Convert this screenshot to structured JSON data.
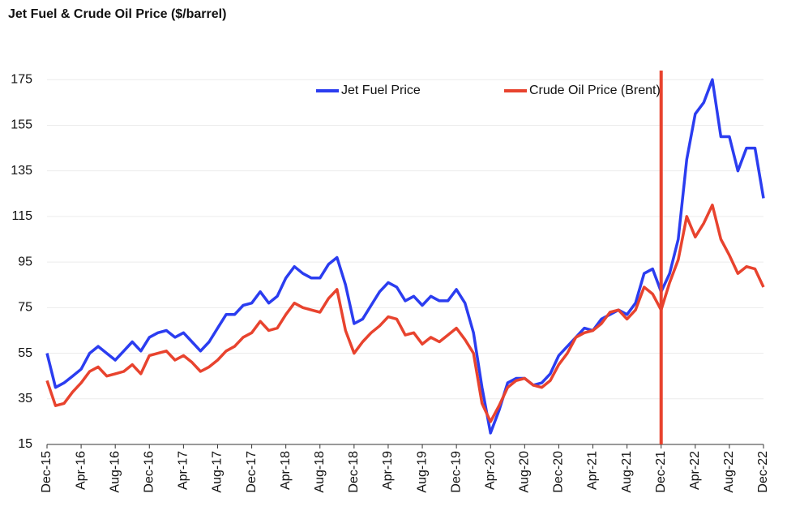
{
  "chart_data": {
    "type": "line",
    "title": "Jet Fuel & Crude Oil Price ($/barrel)",
    "categories": [
      "Dec-15",
      null,
      null,
      null,
      "Apr-16",
      null,
      null,
      null,
      "Aug-16",
      null,
      null,
      null,
      "Dec-16",
      null,
      null,
      null,
      "Apr-17",
      null,
      null,
      null,
      "Aug-17",
      null,
      null,
      null,
      "Dec-17",
      null,
      null,
      null,
      "Apr-18",
      null,
      null,
      null,
      "Aug-18",
      null,
      null,
      null,
      "Dec-18",
      null,
      null,
      null,
      "Apr-19",
      null,
      null,
      null,
      "Aug-19",
      null,
      null,
      null,
      "Dec-19",
      null,
      null,
      null,
      "Apr-20",
      null,
      null,
      null,
      "Aug-20",
      null,
      null,
      null,
      "Dec-20",
      null,
      null,
      null,
      "Apr-21",
      null,
      null,
      null,
      "Aug-21",
      null,
      null,
      null,
      "Dec-21",
      null,
      null,
      null,
      "Apr-22",
      null,
      null,
      null,
      "Aug-22",
      null,
      null,
      null,
      "Dec-22"
    ],
    "series": [
      {
        "name": "Jet Fuel Price",
        "color": "#2b3df0",
        "values": [
          55,
          40,
          42,
          45,
          48,
          55,
          58,
          55,
          52,
          56,
          60,
          56,
          62,
          64,
          65,
          62,
          64,
          60,
          56,
          60,
          66,
          72,
          72,
          76,
          77,
          82,
          77,
          80,
          88,
          93,
          90,
          88,
          88,
          94,
          97,
          85,
          68,
          70,
          76,
          82,
          86,
          84,
          78,
          80,
          76,
          80,
          78,
          78,
          83,
          77,
          64,
          40,
          20,
          30,
          42,
          44,
          44,
          41,
          42,
          46,
          54,
          58,
          62,
          66,
          65,
          70,
          72,
          74,
          72,
          77,
          90,
          92,
          82,
          90,
          105,
          140,
          160,
          165,
          175,
          150,
          150,
          135,
          145,
          145,
          123
        ]
      },
      {
        "name": "Crude Oil Price (Brent)",
        "color": "#e8432e",
        "values": [
          43,
          32,
          33,
          38,
          42,
          47,
          49,
          45,
          46,
          47,
          50,
          46,
          54,
          55,
          56,
          52,
          54,
          51,
          47,
          49,
          52,
          56,
          58,
          62,
          64,
          69,
          65,
          66,
          72,
          77,
          75,
          74,
          73,
          79,
          83,
          65,
          55,
          60,
          64,
          67,
          71,
          70,
          63,
          64,
          59,
          62,
          60,
          63,
          66,
          61,
          55,
          33,
          25,
          32,
          40,
          43,
          44,
          41,
          40,
          43,
          50,
          55,
          62,
          64,
          65,
          68,
          73,
          74,
          70,
          74,
          84,
          81,
          74,
          86,
          96,
          115,
          106,
          112,
          120,
          105,
          98,
          90,
          93,
          92,
          84
        ]
      }
    ],
    "marker": "Dec-21",
    "marker_color": "#e8432e",
    "ylim": [
      15,
      179
    ],
    "yticks": [
      15,
      35,
      55,
      75,
      95,
      115,
      135,
      155,
      175
    ],
    "grid": true
  }
}
